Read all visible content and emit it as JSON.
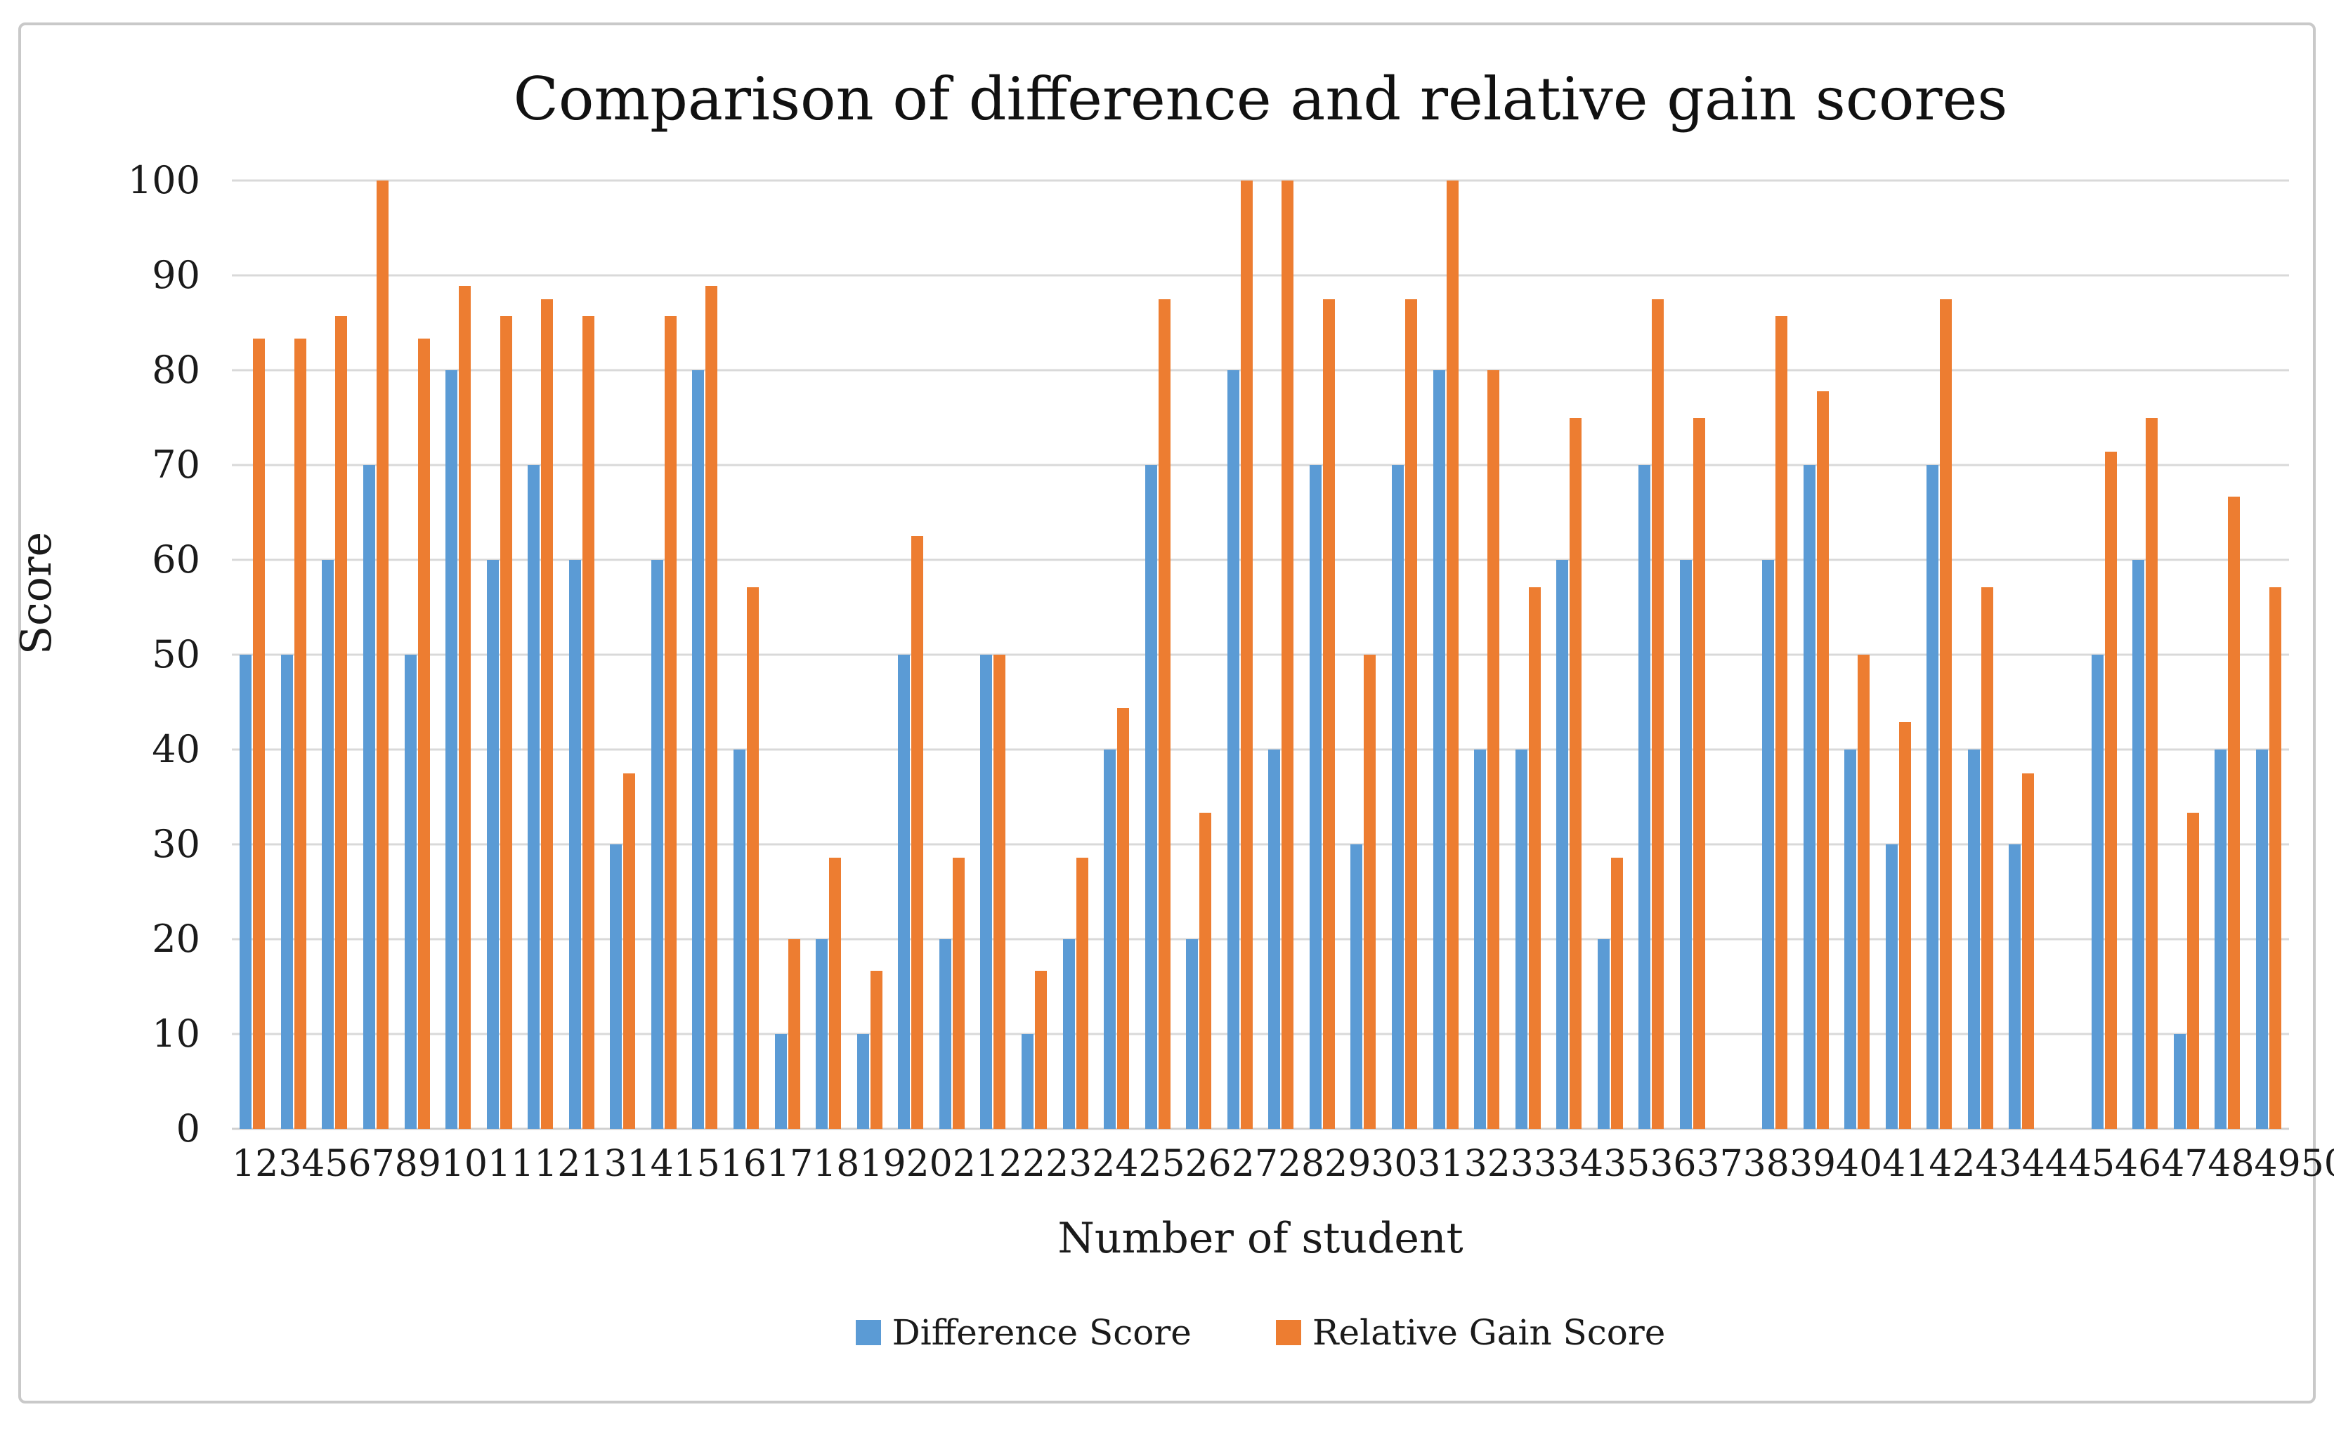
{
  "chart_data": {
    "type": "bar",
    "title": "Comparison of difference and relative gain scores",
    "xlabel": "Number of student",
    "ylabel": "Score",
    "ylim": [
      0,
      100
    ],
    "ytick_step": 10,
    "grid": true,
    "legend_position": "bottom",
    "categories": [
      "1",
      "2",
      "3",
      "4",
      "5",
      "6",
      "7",
      "8",
      "9",
      "10",
      "11",
      "12",
      "13",
      "14",
      "15",
      "16",
      "17",
      "18",
      "19",
      "20",
      "21",
      "22",
      "23",
      "24",
      "25",
      "26",
      "27",
      "28",
      "29",
      "30",
      "31",
      "32",
      "33",
      "34",
      "35",
      "36",
      "37",
      "38",
      "39",
      "40",
      "41",
      "42",
      "43",
      "44",
      "45",
      "46",
      "47",
      "48",
      "49",
      "50"
    ],
    "series": [
      {
        "name": "Difference Score",
        "color": "#5B9BD5",
        "values": [
          50,
          50,
          60,
          70,
          50,
          80,
          60,
          70,
          60,
          30,
          60,
          80,
          40,
          10,
          20,
          10,
          50,
          20,
          50,
          10,
          20,
          40,
          70,
          20,
          80,
          40,
          70,
          30,
          70,
          80,
          40,
          40,
          60,
          20,
          70,
          60,
          0,
          60,
          70,
          40,
          30,
          70,
          40,
          30,
          0,
          50,
          60,
          10,
          40,
          40
        ]
      },
      {
        "name": "Relative Gain Score",
        "color": "#ED7D31",
        "values": [
          83.3,
          83.3,
          85.7,
          100,
          83.3,
          88.9,
          85.7,
          87.5,
          85.7,
          37.5,
          85.7,
          88.9,
          57.1,
          20,
          28.6,
          16.7,
          62.5,
          28.6,
          50,
          16.7,
          28.6,
          44.4,
          87.5,
          33.3,
          100,
          100,
          87.5,
          50,
          87.5,
          100,
          80,
          57.1,
          75,
          28.6,
          87.5,
          75,
          0,
          85.7,
          77.8,
          50,
          42.9,
          87.5,
          57.1,
          37.5,
          0,
          71.4,
          75,
          33.3,
          66.7,
          57.1
        ]
      }
    ],
    "gridline_color": "#D9D9D9",
    "axis_line_color": "#D0D0D0"
  }
}
